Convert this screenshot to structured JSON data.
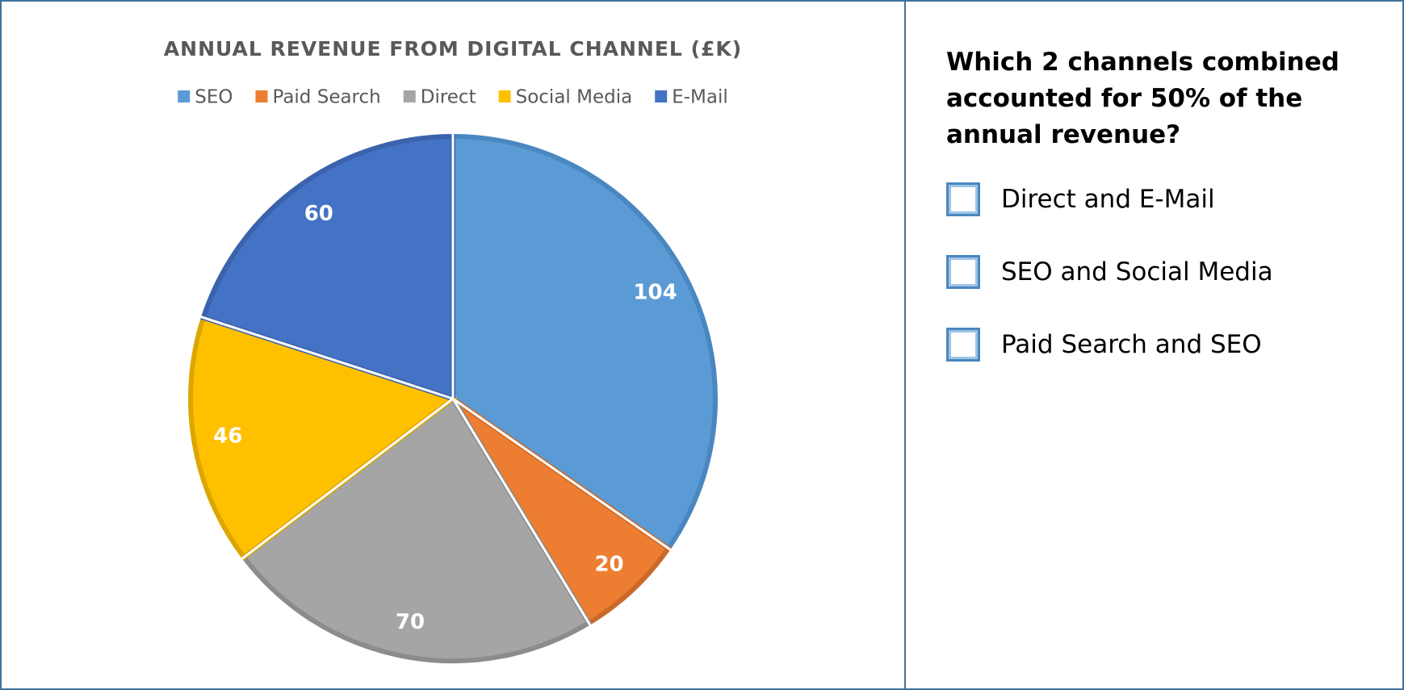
{
  "chart_data": {
    "type": "pie",
    "title": "ANNUAL REVENUE FROM DIGITAL CHANNEL (£K)",
    "categories": [
      "SEO",
      "Paid Search",
      "Direct",
      "Social Media",
      "E-Mail"
    ],
    "values": [
      104,
      20,
      70,
      46,
      60
    ],
    "colors": [
      "#5b9bd5",
      "#ed7d31",
      "#a5a5a5",
      "#ffc000",
      "#4472c4"
    ],
    "strokes": [
      "#4a87c0",
      "#c9692a",
      "#8c8c8c",
      "#dca600",
      "#3a62ad"
    ],
    "legend": "top"
  },
  "question": "Which 2 channels combined accounted for 50% of the annual revenue?",
  "options": [
    "Direct and E-Mail",
    "SEO and Social Media",
    "Paid Search and SEO"
  ]
}
